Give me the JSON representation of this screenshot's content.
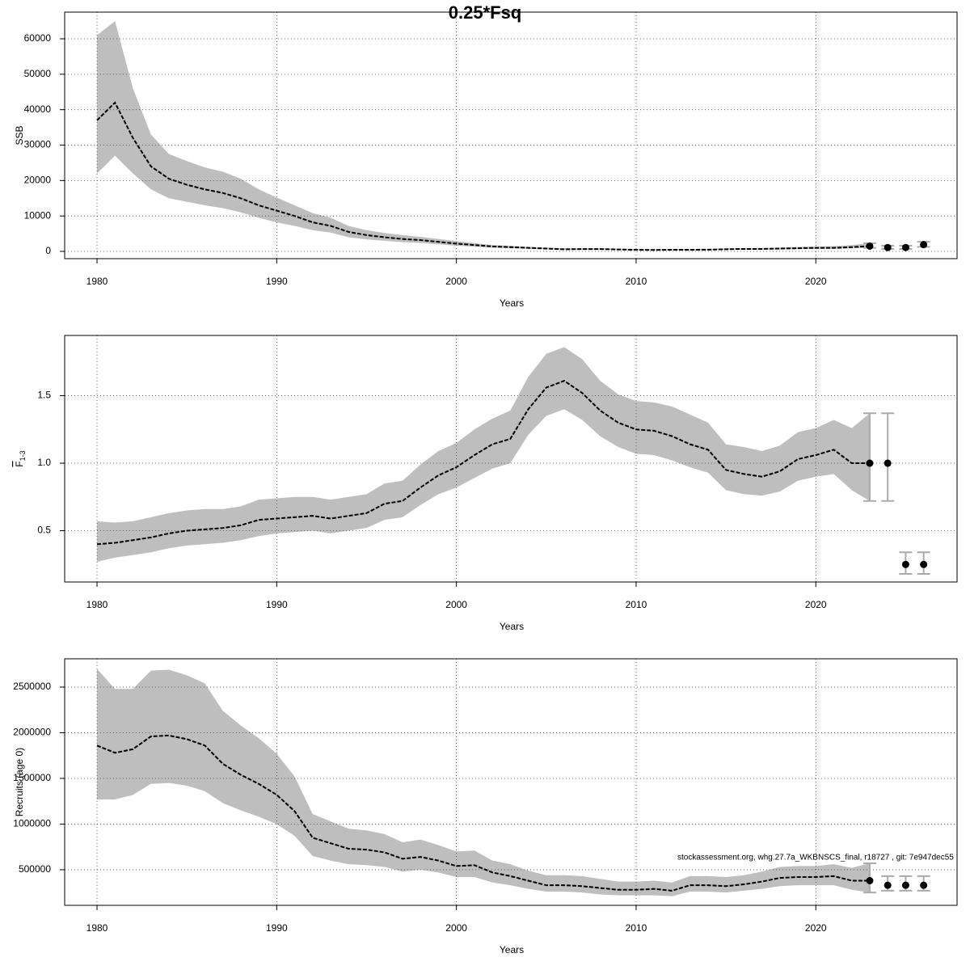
{
  "chart_data": [
    {
      "type": "line",
      "title": "0.25*Fsq",
      "x_label": "Years",
      "y_label": "SSB",
      "xlim": [
        1978.2,
        2027.86
      ],
      "xticks": [
        1980,
        1990,
        2000,
        2010,
        2020
      ],
      "ylim": [
        -2050,
        67530
      ],
      "yticks": [
        0,
        10000,
        20000,
        30000,
        40000,
        50000,
        60000
      ],
      "grid": true,
      "line_color": "#000000",
      "band_color": "#bebebe",
      "x": [
        1980,
        1981,
        1982,
        1983,
        1984,
        1985,
        1986,
        1987,
        1988,
        1989,
        1990,
        1991,
        1992,
        1993,
        1994,
        1995,
        1996,
        1997,
        1998,
        1999,
        2000,
        2001,
        2002,
        2003,
        2004,
        2005,
        2006,
        2007,
        2008,
        2009,
        2010,
        2011,
        2012,
        2013,
        2014,
        2015,
        2016,
        2017,
        2018,
        2019,
        2020,
        2021,
        2022,
        2023
      ],
      "values": [
        37000,
        42000,
        32000,
        24000,
        20500,
        18800,
        17500,
        16500,
        15000,
        13000,
        11500,
        10000,
        8200,
        7200,
        5500,
        4600,
        4000,
        3500,
        3200,
        2700,
        2200,
        1800,
        1400,
        1200,
        1000,
        800,
        600,
        650,
        650,
        550,
        450,
        400,
        450,
        450,
        500,
        600,
        700,
        700,
        800,
        900,
        1000,
        1000,
        1200,
        1500
      ],
      "upper": [
        61000,
        65000,
        46000,
        33000,
        27500,
        25500,
        23700,
        22500,
        20500,
        17500,
        15200,
        13000,
        10800,
        9500,
        7200,
        6000,
        5200,
        4600,
        4100,
        3500,
        2900,
        2300,
        1800,
        1600,
        1300,
        1050,
        850,
        880,
        880,
        760,
        650,
        600,
        650,
        650,
        700,
        850,
        950,
        950,
        1100,
        1250,
        1400,
        1500,
        1800,
        2300
      ],
      "lower": [
        22000,
        27000,
        22000,
        17500,
        15000,
        14000,
        13000,
        12200,
        11000,
        9500,
        8200,
        7200,
        6000,
        5300,
        4000,
        3400,
        3000,
        2600,
        2400,
        2000,
        1600,
        1350,
        1050,
        900,
        750,
        600,
        430,
        470,
        470,
        380,
        300,
        270,
        300,
        300,
        350,
        420,
        500,
        500,
        560,
        630,
        700,
        700,
        850,
        1000
      ],
      "projection": {
        "x": [
          2023,
          2024,
          2025,
          2026
        ],
        "values": [
          1500,
          1100,
          1100,
          1900
        ],
        "lower": [
          1000,
          700,
          700,
          1300
        ],
        "upper": [
          2300,
          1600,
          1600,
          2700
        ]
      }
    },
    {
      "type": "line",
      "x_label": "Years",
      "y_label": "F",
      "y_label_sub": "1-3",
      "xlim": [
        1978.2,
        2027.86
      ],
      "xticks": [
        1980,
        1990,
        2000,
        2010,
        2020
      ],
      "ylim": [
        0.12,
        1.946
      ],
      "yticks": [
        0.5,
        {
          "value": 1,
          "label": "1.0"
        },
        1.5
      ],
      "grid": true,
      "line_color": "#000000",
      "band_color": "#bebebe",
      "x": [
        1980,
        1981,
        1982,
        1983,
        1984,
        1985,
        1986,
        1987,
        1988,
        1989,
        1990,
        1991,
        1992,
        1993,
        1994,
        1995,
        1996,
        1997,
        1998,
        1999,
        2000,
        2001,
        2002,
        2003,
        2004,
        2005,
        2006,
        2007,
        2008,
        2009,
        2010,
        2011,
        2012,
        2013,
        2014,
        2015,
        2016,
        2017,
        2018,
        2019,
        2020,
        2021,
        2022,
        2023
      ],
      "values": [
        0.4,
        0.41,
        0.43,
        0.45,
        0.48,
        0.5,
        0.51,
        0.52,
        0.54,
        0.58,
        0.59,
        0.6,
        0.61,
        0.59,
        0.61,
        0.63,
        0.7,
        0.72,
        0.82,
        0.91,
        0.97,
        1.06,
        1.14,
        1.18,
        1.4,
        1.56,
        1.61,
        1.52,
        1.39,
        1.3,
        1.25,
        1.24,
        1.2,
        1.14,
        1.1,
        0.95,
        0.92,
        0.9,
        0.94,
        1.03,
        1.06,
        1.1,
        1.0,
        1.0
      ],
      "upper": [
        0.57,
        0.56,
        0.57,
        0.6,
        0.63,
        0.65,
        0.66,
        0.66,
        0.68,
        0.73,
        0.74,
        0.75,
        0.75,
        0.73,
        0.75,
        0.77,
        0.85,
        0.87,
        0.99,
        1.09,
        1.15,
        1.25,
        1.33,
        1.39,
        1.64,
        1.81,
        1.86,
        1.77,
        1.61,
        1.51,
        1.46,
        1.45,
        1.42,
        1.36,
        1.3,
        1.14,
        1.12,
        1.09,
        1.13,
        1.23,
        1.26,
        1.32,
        1.26,
        1.37
      ],
      "lower": [
        0.27,
        0.3,
        0.32,
        0.34,
        0.37,
        0.39,
        0.4,
        0.41,
        0.43,
        0.46,
        0.48,
        0.49,
        0.5,
        0.48,
        0.5,
        0.52,
        0.58,
        0.6,
        0.69,
        0.77,
        0.82,
        0.89,
        0.96,
        1.0,
        1.21,
        1.35,
        1.4,
        1.32,
        1.2,
        1.12,
        1.07,
        1.06,
        1.02,
        0.97,
        0.93,
        0.8,
        0.77,
        0.76,
        0.79,
        0.87,
        0.9,
        0.92,
        0.8,
        0.72
      ],
      "projection": {
        "x": [
          2023,
          2024,
          2025,
          2026
        ],
        "values": [
          1.0,
          1.0,
          0.25,
          0.25
        ],
        "lower": [
          0.72,
          0.72,
          0.18,
          0.18
        ],
        "upper": [
          1.37,
          1.37,
          0.34,
          0.34
        ]
      }
    },
    {
      "type": "line",
      "x_label": "Years",
      "y_label": "Recruits (age 0)",
      "annotation": "stockassessment.org, whg.27.7a_WKBNSCS_final, r18727 , git: 7e947dec55",
      "xlim": [
        1978.2,
        2027.86
      ],
      "xticks": [
        1980,
        1990,
        2000,
        2010,
        2020
      ],
      "ylim": [
        110000,
        2810000
      ],
      "yticks": [
        500000,
        1000000,
        1500000,
        2000000,
        2500000
      ],
      "grid": true,
      "line_color": "#000000",
      "band_color": "#bebebe",
      "x": [
        1980,
        1981,
        1982,
        1983,
        1984,
        1985,
        1986,
        1987,
        1988,
        1989,
        1990,
        1991,
        1992,
        1993,
        1994,
        1995,
        1996,
        1997,
        1998,
        1999,
        2000,
        2001,
        2002,
        2003,
        2004,
        2005,
        2006,
        2007,
        2008,
        2009,
        2010,
        2011,
        2012,
        2013,
        2014,
        2015,
        2016,
        2017,
        2018,
        2019,
        2020,
        2021,
        2022,
        2023
      ],
      "values": [
        1860000,
        1780000,
        1820000,
        1960000,
        1970000,
        1930000,
        1860000,
        1660000,
        1540000,
        1440000,
        1320000,
        1140000,
        850000,
        790000,
        730000,
        720000,
        690000,
        620000,
        640000,
        600000,
        540000,
        550000,
        470000,
        430000,
        380000,
        330000,
        330000,
        320000,
        300000,
        280000,
        280000,
        290000,
        270000,
        330000,
        330000,
        320000,
        340000,
        370000,
        410000,
        420000,
        420000,
        430000,
        380000,
        380000
      ],
      "upper": [
        2700000,
        2480000,
        2480000,
        2680000,
        2690000,
        2630000,
        2540000,
        2240000,
        2080000,
        1940000,
        1770000,
        1520000,
        1110000,
        1030000,
        950000,
        930000,
        890000,
        800000,
        830000,
        770000,
        700000,
        710000,
        600000,
        560000,
        490000,
        440000,
        440000,
        430000,
        400000,
        370000,
        370000,
        380000,
        360000,
        430000,
        430000,
        420000,
        440000,
        480000,
        530000,
        540000,
        540000,
        560000,
        520000,
        570000
      ],
      "lower": [
        1270000,
        1270000,
        1320000,
        1440000,
        1450000,
        1420000,
        1360000,
        1230000,
        1150000,
        1080000,
        1000000,
        870000,
        650000,
        600000,
        560000,
        550000,
        530000,
        480000,
        500000,
        470000,
        420000,
        420000,
        360000,
        330000,
        290000,
        260000,
        260000,
        250000,
        230000,
        220000,
        220000,
        220000,
        210000,
        260000,
        260000,
        250000,
        270000,
        290000,
        320000,
        330000,
        330000,
        330000,
        280000,
        250000
      ],
      "projection": {
        "x": [
          2023,
          2024,
          2025,
          2026
        ],
        "values": [
          380000,
          330000,
          330000,
          330000
        ],
        "lower": [
          250000,
          270000,
          270000,
          270000
        ],
        "upper": [
          570000,
          430000,
          430000,
          430000
        ]
      }
    }
  ]
}
